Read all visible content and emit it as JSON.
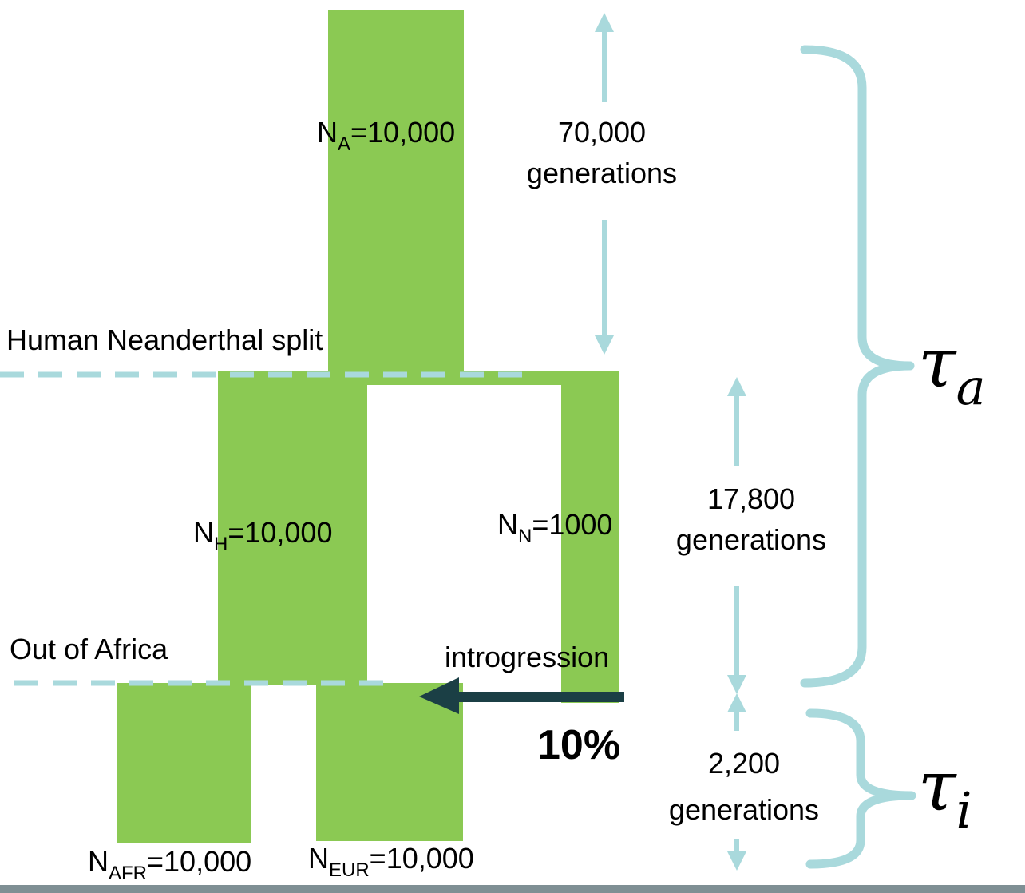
{
  "colors": {
    "population": "#8BC953",
    "arrow_light": "#A9D9DC",
    "dash": "#A9D9DC",
    "introgression_arrow": "#1B3F45",
    "bottom_bar": "#7F8F94"
  },
  "populations": {
    "ancestral": {
      "symbol": "N",
      "sub": "A",
      "value": "=10,000"
    },
    "human": {
      "symbol": "N",
      "sub": "H",
      "value": "=10,000"
    },
    "neanderthal": {
      "symbol": "N",
      "sub": "N",
      "value": "=1000"
    },
    "african": {
      "symbol": "N",
      "sub": "AFR",
      "value": "=10,000"
    },
    "european": {
      "symbol": "N",
      "sub": "EUR",
      "value": "=10,000"
    }
  },
  "events": {
    "split": "Human Neanderthal split",
    "out_of_africa": "Out of Africa",
    "introgression": "introgression",
    "introgression_fraction": "10%"
  },
  "durations": {
    "top": {
      "line1": "70,000",
      "line2": "generations"
    },
    "middle": {
      "line1": "17,800",
      "line2": "generations"
    },
    "bottom": {
      "line1": "2,200",
      "line2": "generations"
    }
  },
  "braces": {
    "tau_a": {
      "base": "τ",
      "sub": "a"
    },
    "tau_i": {
      "base": "τ",
      "sub": "i"
    }
  }
}
